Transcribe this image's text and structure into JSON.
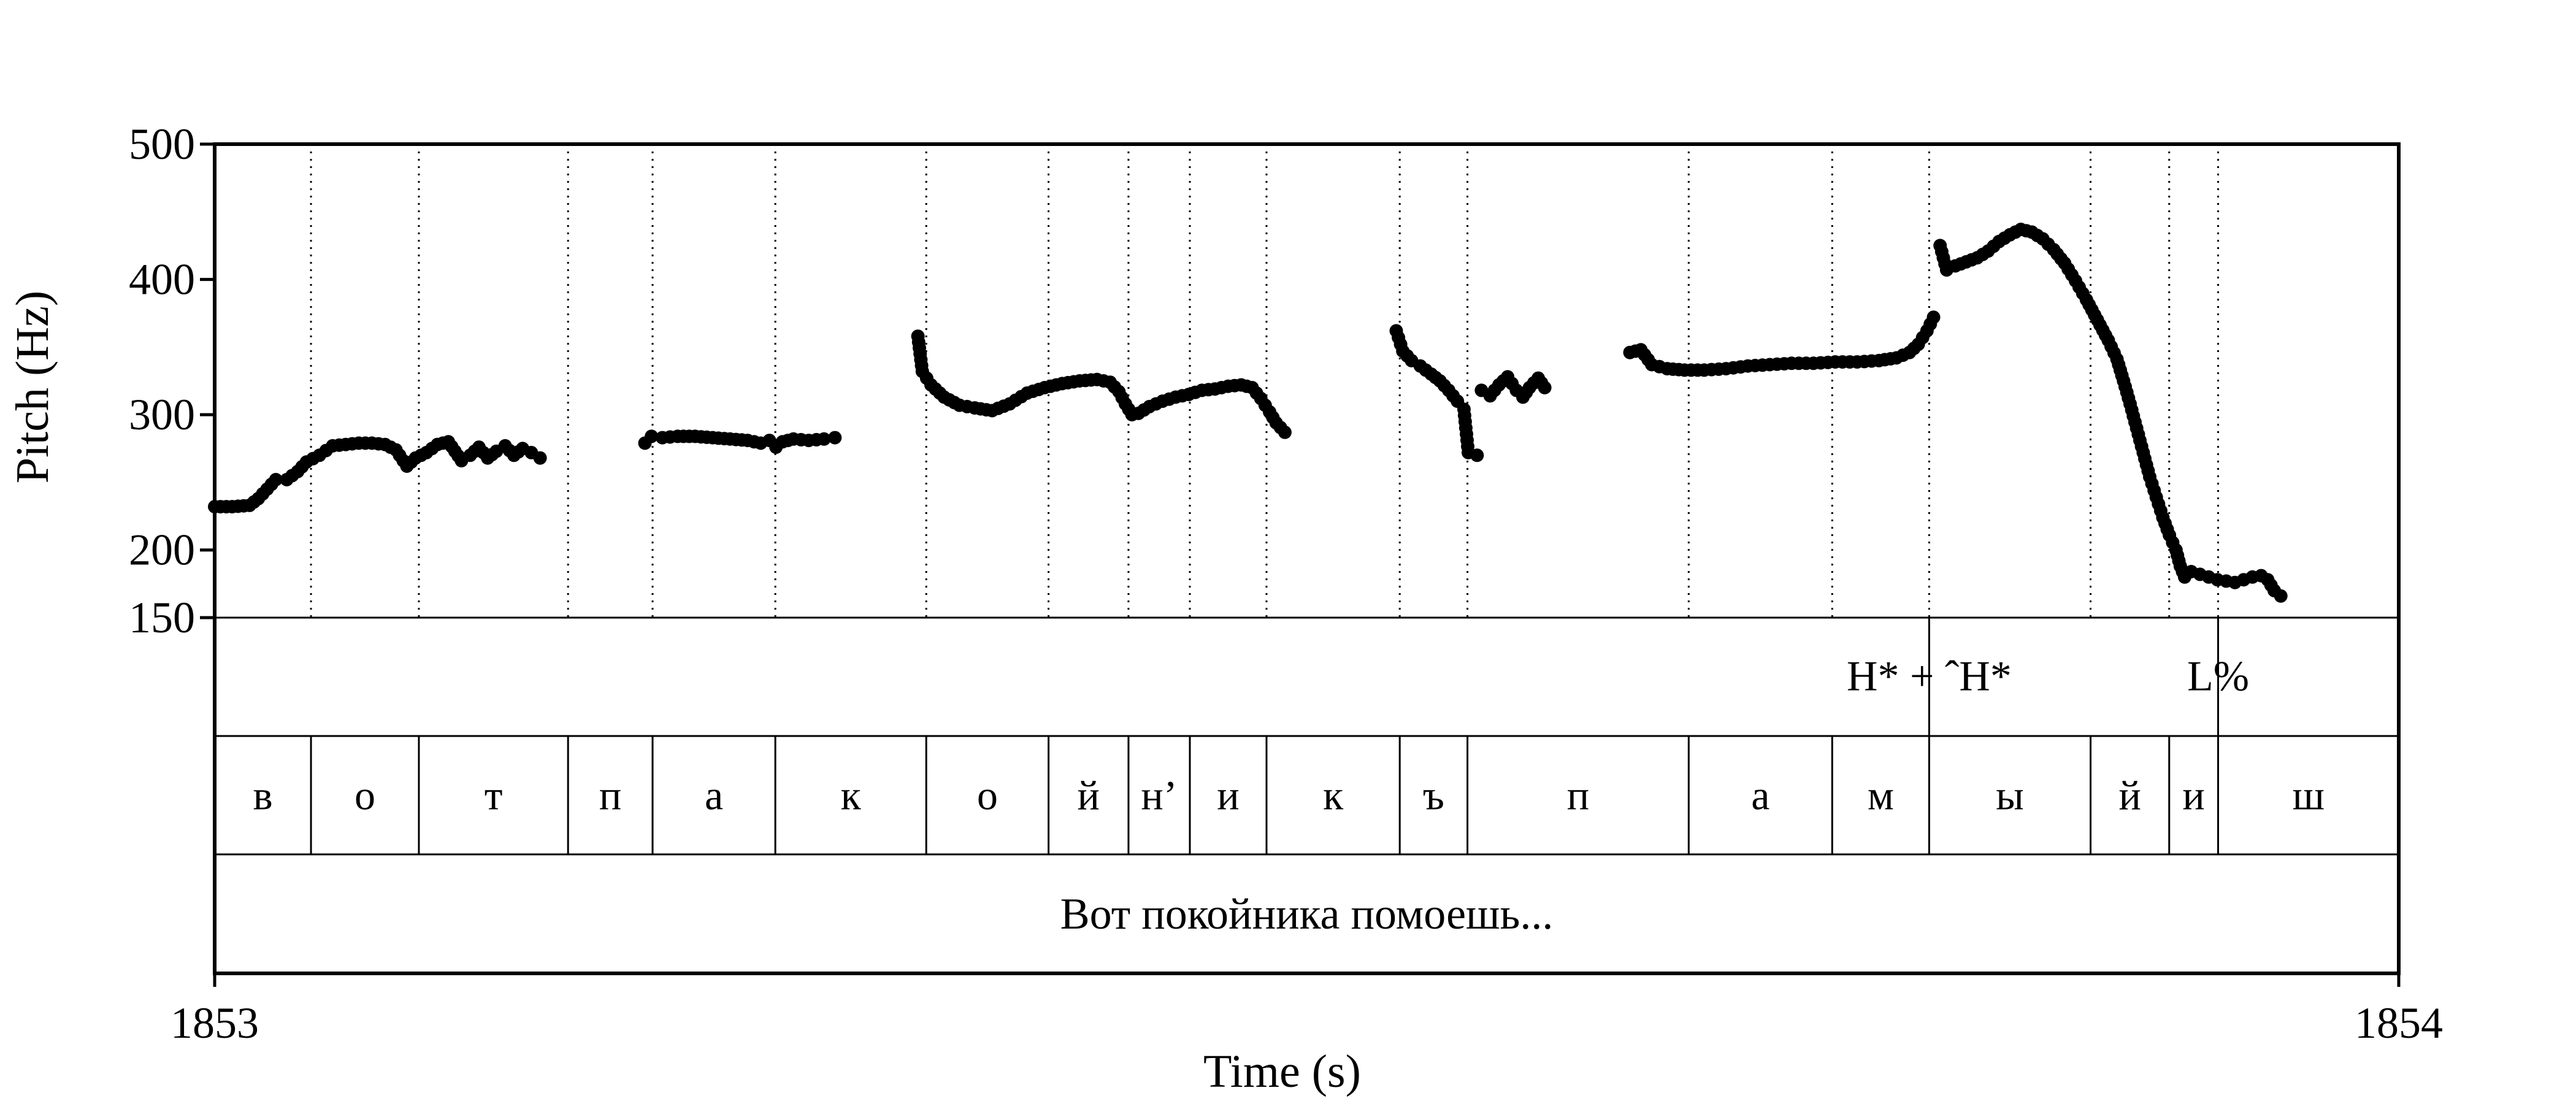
{
  "chart_data": {
    "type": "scatter",
    "ylabel": "Pitch (Hz)",
    "xlabel": "Time (s)",
    "xlim": [
      1853,
      1854
    ],
    "ylim": [
      150,
      500
    ],
    "x_tick_labels": [
      "1853",
      "1854"
    ],
    "y_ticks": [
      {
        "value": 500,
        "label": "500"
      },
      {
        "value": 400,
        "label": "400"
      },
      {
        "value": 300,
        "label": "300"
      },
      {
        "value": 200,
        "label": "200"
      },
      {
        "value": 150,
        "label": "150"
      }
    ],
    "segment_boundaries": [
      1853.0441,
      1853.0935,
      1853.1618,
      1853.2005,
      1853.2567,
      1853.3258,
      1853.3818,
      1853.4184,
      1853.4465,
      1853.4816,
      1853.5426,
      1853.5736,
      1853.6749,
      1853.7406,
      1853.785,
      1853.8589,
      1853.8949,
      1853.9173
    ],
    "segments": [
      {
        "label": "в",
        "start": 1853.0,
        "end": 1853.0441
      },
      {
        "label": "о",
        "start": 1853.0441,
        "end": 1853.0935
      },
      {
        "label": "т",
        "start": 1853.0935,
        "end": 1853.1618
      },
      {
        "label": "п",
        "start": 1853.1618,
        "end": 1853.2005
      },
      {
        "label": "а",
        "start": 1853.2005,
        "end": 1853.2567
      },
      {
        "label": "к",
        "start": 1853.2567,
        "end": 1853.3258
      },
      {
        "label": "о",
        "start": 1853.3258,
        "end": 1853.3818
      },
      {
        "label": "й",
        "start": 1853.3818,
        "end": 1853.4184
      },
      {
        "label": "н’",
        "start": 1853.4184,
        "end": 1853.4465
      },
      {
        "label": "и",
        "start": 1853.4465,
        "end": 1853.4816
      },
      {
        "label": "к",
        "start": 1853.4816,
        "end": 1853.5426
      },
      {
        "label": "ъ",
        "start": 1853.5426,
        "end": 1853.5736
      },
      {
        "label": "п",
        "start": 1853.5736,
        "end": 1853.6749
      },
      {
        "label": "а",
        "start": 1853.6749,
        "end": 1853.7406
      },
      {
        "label": "м",
        "start": 1853.7406,
        "end": 1853.785
      },
      {
        "label": "ы",
        "start": 1853.785,
        "end": 1853.8589
      },
      {
        "label": "й",
        "start": 1853.8589,
        "end": 1853.8949
      },
      {
        "label": "и",
        "start": 1853.8949,
        "end": 1853.9173
      },
      {
        "label": "ш",
        "start": 1853.9173,
        "end": 1854.0
      }
    ],
    "tones": [
      {
        "label": "H* + ˆH*",
        "time": 1853.785
      },
      {
        "label": "L%",
        "time": 1853.9173
      }
    ],
    "sentence": "Вот покойника помоешь...",
    "pitch_contours": [
      [
        [
          1853.0,
          232
        ],
        [
          1853.008,
          232
        ],
        [
          1853.016,
          233
        ],
        [
          1853.02,
          238
        ],
        [
          1853.024,
          245
        ],
        [
          1853.028,
          252
        ],
        [
          1853.033,
          252
        ],
        [
          1853.038,
          258
        ],
        [
          1853.042,
          265
        ],
        [
          1853.048,
          270
        ],
        [
          1853.054,
          277
        ],
        [
          1853.06,
          278
        ],
        [
          1853.066,
          279
        ],
        [
          1853.072,
          279
        ],
        [
          1853.078,
          278
        ],
        [
          1853.083,
          274
        ],
        [
          1853.088,
          262
        ],
        [
          1853.092,
          268
        ],
        [
          1853.097,
          272
        ],
        [
          1853.102,
          278
        ],
        [
          1853.107,
          280
        ],
        [
          1853.11,
          273
        ],
        [
          1853.113,
          266
        ],
        [
          1853.117,
          270
        ],
        [
          1853.121,
          276
        ],
        [
          1853.125,
          268
        ],
        [
          1853.129,
          273
        ],
        [
          1853.133,
          277
        ],
        [
          1853.137,
          270
        ],
        [
          1853.141,
          275
        ],
        [
          1853.145,
          272
        ],
        [
          1853.149,
          268
        ]
      ],
      [
        [
          1853.197,
          279
        ],
        [
          1853.2,
          284
        ],
        [
          1853.205,
          283
        ],
        [
          1853.212,
          284
        ],
        [
          1853.22,
          284
        ],
        [
          1853.228,
          283
        ],
        [
          1853.236,
          282
        ],
        [
          1853.244,
          281
        ],
        [
          1853.25,
          279
        ],
        [
          1853.254,
          281
        ],
        [
          1853.257,
          276
        ],
        [
          1853.26,
          280
        ],
        [
          1853.265,
          282
        ],
        [
          1853.272,
          281
        ],
        [
          1853.279,
          282
        ],
        [
          1853.284,
          283
        ]
      ],
      [
        [
          1853.322,
          358
        ],
        [
          1853.324,
          332
        ],
        [
          1853.328,
          322
        ],
        [
          1853.334,
          313
        ],
        [
          1853.341,
          307
        ],
        [
          1853.348,
          305
        ],
        [
          1853.356,
          303
        ],
        [
          1853.364,
          308
        ],
        [
          1853.372,
          316
        ],
        [
          1853.38,
          320
        ],
        [
          1853.388,
          323
        ],
        [
          1853.396,
          325
        ],
        [
          1853.404,
          326
        ],
        [
          1853.41,
          324
        ],
        [
          1853.414,
          317
        ],
        [
          1853.417,
          308
        ],
        [
          1853.42,
          300
        ],
        [
          1853.423,
          301
        ],
        [
          1853.428,
          306
        ],
        [
          1853.434,
          310
        ],
        [
          1853.44,
          313
        ],
        [
          1853.446,
          315
        ],
        [
          1853.452,
          318
        ],
        [
          1853.458,
          319
        ],
        [
          1853.464,
          321
        ],
        [
          1853.47,
          322
        ],
        [
          1853.475,
          320
        ],
        [
          1853.479,
          312
        ],
        [
          1853.483,
          302
        ],
        [
          1853.486,
          294
        ],
        [
          1853.49,
          287
        ]
      ],
      [
        [
          1853.541,
          362
        ],
        [
          1853.544,
          347
        ],
        [
          1853.548,
          340
        ],
        [
          1853.552,
          336
        ],
        [
          1853.557,
          330
        ],
        [
          1853.561,
          325
        ],
        [
          1853.565,
          318
        ],
        [
          1853.569,
          310
        ],
        [
          1853.572,
          304
        ],
        [
          1853.574,
          272
        ],
        [
          1853.578,
          270
        ],
        [
          1853.58,
          318
        ],
        [
          1853.584,
          314
        ],
        [
          1853.588,
          322
        ],
        [
          1853.592,
          328
        ],
        [
          1853.596,
          318
        ],
        [
          1853.599,
          313
        ],
        [
          1853.602,
          320
        ],
        [
          1853.606,
          327
        ],
        [
          1853.609,
          320
        ]
      ],
      [
        [
          1853.648,
          346
        ],
        [
          1853.653,
          348
        ],
        [
          1853.658,
          337
        ],
        [
          1853.665,
          334
        ],
        [
          1853.673,
          333
        ],
        [
          1853.682,
          333
        ],
        [
          1853.692,
          334
        ],
        [
          1853.702,
          336
        ],
        [
          1853.712,
          337
        ],
        [
          1853.722,
          338
        ],
        [
          1853.732,
          338
        ],
        [
          1853.742,
          339
        ],
        [
          1853.752,
          339
        ],
        [
          1853.762,
          340
        ],
        [
          1853.77,
          342
        ],
        [
          1853.776,
          346
        ],
        [
          1853.78,
          352
        ],
        [
          1853.784,
          362
        ],
        [
          1853.787,
          372
        ],
        [
          1853.79,
          425
        ],
        [
          1853.793,
          407
        ],
        [
          1853.797,
          410
        ],
        [
          1853.802,
          413
        ],
        [
          1853.807,
          416
        ],
        [
          1853.812,
          421
        ],
        [
          1853.817,
          428
        ],
        [
          1853.822,
          433
        ],
        [
          1853.827,
          437
        ],
        [
          1853.832,
          435
        ],
        [
          1853.837,
          430
        ],
        [
          1853.842,
          422
        ],
        [
          1853.847,
          412
        ],
        [
          1853.852,
          399
        ],
        [
          1853.857,
          385
        ],
        [
          1853.862,
          370
        ],
        [
          1853.867,
          355
        ],
        [
          1853.871,
          341
        ],
        [
          1853.874,
          325
        ],
        [
          1853.877,
          308
        ],
        [
          1853.88,
          290
        ],
        [
          1853.883,
          272
        ],
        [
          1853.886,
          254
        ],
        [
          1853.889,
          239
        ],
        [
          1853.892,
          224
        ],
        [
          1853.895,
          211
        ],
        [
          1853.898,
          200
        ],
        [
          1853.9,
          188
        ],
        [
          1853.902,
          180
        ],
        [
          1853.905,
          184
        ],
        [
          1853.909,
          182
        ],
        [
          1853.913,
          180
        ],
        [
          1853.917,
          178
        ],
        [
          1853.921,
          177
        ],
        [
          1853.925,
          176
        ],
        [
          1853.929,
          178
        ],
        [
          1853.933,
          180
        ],
        [
          1853.937,
          181
        ],
        [
          1853.94,
          178
        ],
        [
          1853.943,
          170
        ],
        [
          1853.946,
          166
        ]
      ]
    ]
  }
}
